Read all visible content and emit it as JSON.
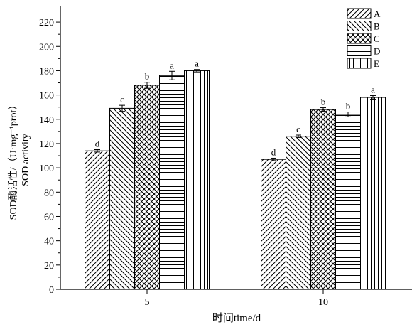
{
  "chart_data": {
    "type": "bar",
    "categories": [
      "5",
      "10"
    ],
    "series": [
      {
        "name": "A",
        "values": [
          114,
          107
        ],
        "errors": [
          1,
          1
        ],
        "letters": [
          "d",
          "d"
        ],
        "pattern": "diag-fwd"
      },
      {
        "name": "B",
        "values": [
          149,
          126
        ],
        "errors": [
          2.5,
          1
        ],
        "letters": [
          "c",
          "c"
        ],
        "pattern": "diag-back"
      },
      {
        "name": "C",
        "values": [
          168,
          148
        ],
        "errors": [
          2.5,
          1.5
        ],
        "letters": [
          "b",
          "b"
        ],
        "pattern": "crosshatch"
      },
      {
        "name": "D",
        "values": [
          176,
          144
        ],
        "errors": [
          3.5,
          2
        ],
        "letters": [
          "a",
          "b"
        ],
        "pattern": "horizontal"
      },
      {
        "name": "E",
        "values": [
          180,
          158
        ],
        "errors": [
          1,
          1.5
        ],
        "letters": [
          "a",
          "a"
        ],
        "pattern": "vertical"
      }
    ],
    "xlabel": "时间time/d",
    "ylabel_line1": "SOD酶活性/（U·mg⁻¹prot）",
    "ylabel_line2": "SOD activity",
    "ylim": [
      0,
      230
    ],
    "yticks": [
      0,
      20,
      40,
      60,
      80,
      100,
      120,
      140,
      160,
      180,
      200,
      220
    ],
    "grid": false,
    "legend_position": "top-right"
  }
}
